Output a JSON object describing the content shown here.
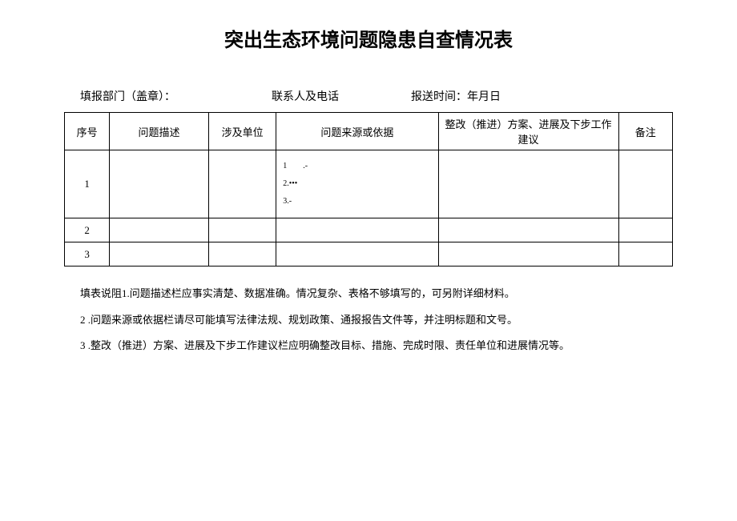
{
  "title": "突出生态环境问题隐患自查情况表",
  "info": {
    "department_label": "填报部门（盖章）：",
    "contact_label": "联系人及电话",
    "date_label": "报送时间：年月日"
  },
  "table": {
    "headers": {
      "seq": "序号",
      "desc": "问题描述",
      "unit": "涉及单位",
      "source": "问题来源或依据",
      "plan": "整改（推进）方案、进展及下步工作建议",
      "remark": "备注"
    },
    "rows": [
      {
        "seq": "1",
        "desc": "",
        "unit": "",
        "source_lines": [
          "1　　.-",
          "2.•••",
          "3.-"
        ],
        "plan": "",
        "remark": ""
      },
      {
        "seq": "2",
        "desc": "",
        "unit": "",
        "source_lines": [],
        "plan": "",
        "remark": ""
      },
      {
        "seq": "3",
        "desc": "",
        "unit": "",
        "source_lines": [],
        "plan": "",
        "remark": ""
      }
    ]
  },
  "notes": {
    "line1": "填表说阻1.问题描述栏应事实清楚、数据准确。情况复杂、表格不够填写的，可另附详细材料。",
    "line2": "2 .问题来源或依据栏请尽可能填写法律法规、规划政策、通报报告文件等，并注明标题和文号。",
    "line3": "3 .整改（推进）方案、进展及下步工作建议栏应明确整改目标、措施、完成时限、责任单位和进展情况等。"
  },
  "styling": {
    "background_color": "#ffffff",
    "text_color": "#000000",
    "border_color": "#000000",
    "title_fontsize": 24,
    "body_fontsize": 13,
    "small_fontsize": 10
  }
}
